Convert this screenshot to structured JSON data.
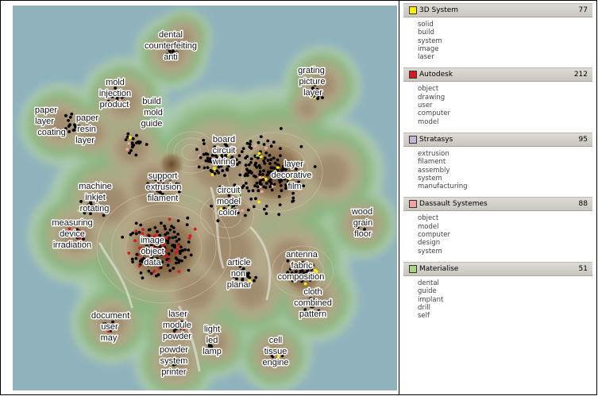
{
  "map": {
    "clusters": [
      {
        "words": [
          "dental",
          "counterfeiting",
          "anti"
        ],
        "at": [
          [
            199,
            40
          ],
          [
            199,
            54
          ],
          [
            199,
            68
          ]
        ]
      },
      {
        "words": [
          "mold",
          "injection",
          "product"
        ],
        "at": [
          [
            129,
            100
          ],
          [
            129,
            114
          ],
          [
            128,
            128
          ]
        ]
      },
      {
        "words": [
          "build",
          "mold",
          "guide"
        ],
        "at": [
          [
            175,
            124
          ],
          [
            177,
            138
          ],
          [
            175,
            152
          ]
        ]
      },
      {
        "words": [
          "paper",
          "layer",
          "coating"
        ],
        "at": [
          [
            42,
            135
          ],
          [
            40,
            149
          ],
          [
            49,
            163
          ]
        ]
      },
      {
        "words": [
          "paper",
          "resin",
          "layer"
        ],
        "at": [
          [
            94,
            145
          ],
          [
            93,
            159
          ],
          [
            91,
            173
          ]
        ]
      },
      {
        "words": [
          "grating",
          "picture",
          "layer"
        ],
        "at": [
          [
            376,
            85
          ],
          [
            377,
            99
          ],
          [
            378,
            113
          ]
        ]
      },
      {
        "words": [
          "board",
          "circuit",
          "wiring"
        ],
        "at": [
          [
            266,
            172
          ],
          [
            266,
            186
          ],
          [
            266,
            200
          ]
        ]
      },
      {
        "words": [
          "layer",
          "decorative",
          "film"
        ],
        "at": [
          [
            354,
            203
          ],
          [
            351,
            217
          ],
          [
            355,
            231
          ]
        ]
      },
      {
        "words": [
          "support",
          "extrusion",
          "filament"
        ],
        "at": [
          [
            189,
            218
          ],
          [
            190,
            232
          ],
          [
            189,
            246
          ]
        ]
      },
      {
        "words": [
          "machine",
          "inkjet",
          "rotating"
        ],
        "at": [
          [
            104,
            231
          ],
          [
            104,
            245
          ],
          [
            103,
            259
          ]
        ]
      },
      {
        "words": [
          "circuit",
          "model",
          "color"
        ],
        "at": [
          [
            272,
            236
          ],
          [
            272,
            250
          ],
          [
            271,
            264
          ]
        ]
      },
      {
        "words": [
          "wood",
          "grain",
          "floor"
        ],
        "at": [
          [
            440,
            263
          ],
          [
            441,
            277
          ],
          [
            441,
            291
          ]
        ]
      },
      {
        "words": [
          "measuring",
          "device",
          "irradiation"
        ],
        "at": [
          [
            75,
            277
          ],
          [
            75,
            291
          ],
          [
            75,
            305
          ]
        ]
      },
      {
        "words": [
          "image",
          "object",
          "data"
        ],
        "at": [
          [
            176,
            299
          ],
          [
            176,
            313
          ],
          [
            176,
            327
          ]
        ]
      },
      {
        "words": [
          "antenna",
          "fabric",
          "composition"
        ],
        "at": [
          [
            364,
            317
          ],
          [
            364,
            331
          ],
          [
            363,
            345
          ]
        ]
      },
      {
        "words": [
          "article",
          "non",
          "planar"
        ],
        "at": [
          [
            285,
            327
          ],
          [
            284,
            341
          ],
          [
            285,
            355
          ]
        ]
      },
      {
        "words": [
          "cloth",
          "combined",
          "pattern"
        ],
        "at": [
          [
            378,
            364
          ],
          [
            378,
            378
          ],
          [
            378,
            392
          ]
        ]
      },
      {
        "words": [
          "document",
          "user",
          "may"
        ],
        "at": [
          [
            123,
            394
          ],
          [
            122,
            408
          ],
          [
            121,
            422
          ]
        ]
      },
      {
        "words": [
          "laser",
          "module",
          "powder"
        ],
        "at": [
          [
            208,
            392
          ],
          [
            207,
            406
          ],
          [
            207,
            420
          ]
        ]
      },
      {
        "words": [
          "light",
          "led",
          "lamp"
        ],
        "at": [
          [
            251,
            411
          ],
          [
            251,
            425
          ],
          [
            251,
            439
          ]
        ]
      },
      {
        "words": [
          "cell",
          "tissue",
          "engine"
        ],
        "at": [
          [
            331,
            425
          ],
          [
            331,
            439
          ],
          [
            331,
            453
          ]
        ]
      },
      {
        "words": [
          "powder",
          "system",
          "printer"
        ],
        "at": [
          [
            203,
            437
          ],
          [
            203,
            451
          ],
          [
            203,
            465
          ]
        ]
      }
    ]
  },
  "legend": [
    {
      "name": "3D System",
      "count": "77",
      "color": "#ffee00",
      "terms": [
        "solid",
        "build",
        "system",
        "image",
        "laser"
      ]
    },
    {
      "name": "Autodesk",
      "count": "212",
      "color": "#d21b1b",
      "terms": [
        "object",
        "drawing",
        "user",
        "computer",
        "model"
      ]
    },
    {
      "name": "Stratasys",
      "count": "95",
      "color": "#c9b6d6",
      "terms": [
        "extrusion",
        "filament",
        "assembly",
        "system",
        "manufacturing"
      ]
    },
    {
      "name": "Dassault Systemes",
      "count": "88",
      "color": "#f0a3a3",
      "terms": [
        "object",
        "model",
        "computer",
        "design",
        "system"
      ]
    },
    {
      "name": "Materialise",
      "count": "51",
      "color": "#a6d884",
      "terms": [
        "dental",
        "guide",
        "implant",
        "drill",
        "self"
      ]
    }
  ]
}
